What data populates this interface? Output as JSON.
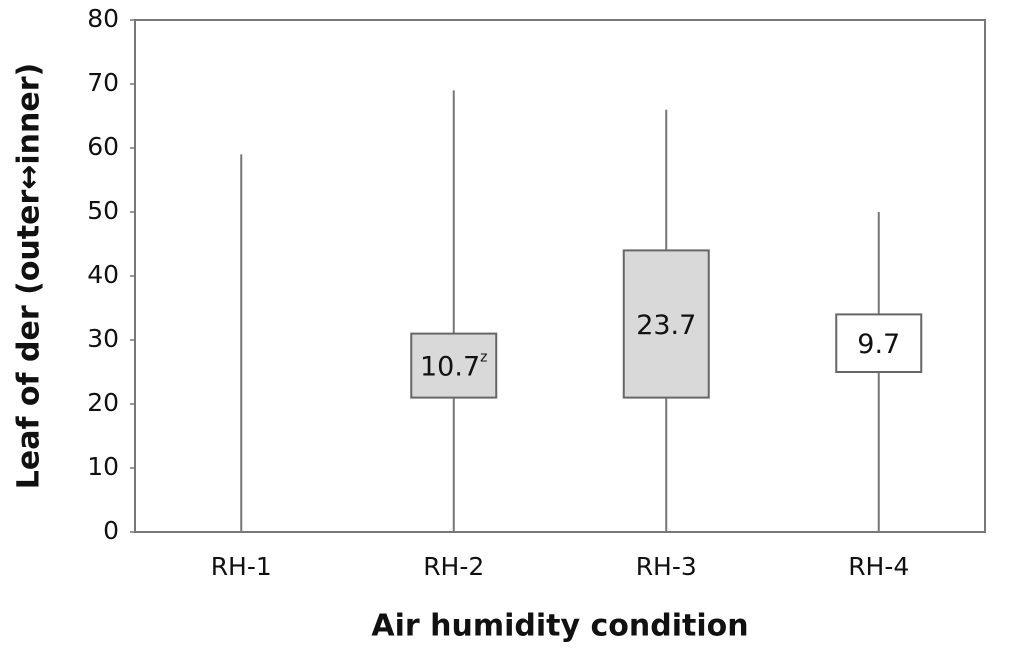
{
  "chart_data": {
    "type": "box",
    "x_label": "Air humidity condition",
    "y_label": "Leaf of der (outer↔inner)",
    "categories": [
      "RH-1",
      "RH-2",
      "RH-3",
      "RH-4"
    ],
    "min": [
      0,
      0,
      0,
      0
    ],
    "q1": [
      0,
      21,
      21,
      25
    ],
    "q3": [
      0,
      31,
      44,
      34
    ],
    "max": [
      59,
      69,
      66,
      50
    ],
    "box_labels": [
      null,
      10.7,
      23.7,
      9.7
    ],
    "label_superscripts": [
      null,
      "z",
      null,
      null
    ],
    "box_colors": [
      "#d9d9d9",
      "#d9d9d9",
      "#d9d9d9",
      "#ffffff"
    ],
    "ylim": [
      0,
      80
    ],
    "yticks": [
      0,
      10,
      20,
      30,
      40,
      50,
      60,
      70,
      80
    ]
  }
}
